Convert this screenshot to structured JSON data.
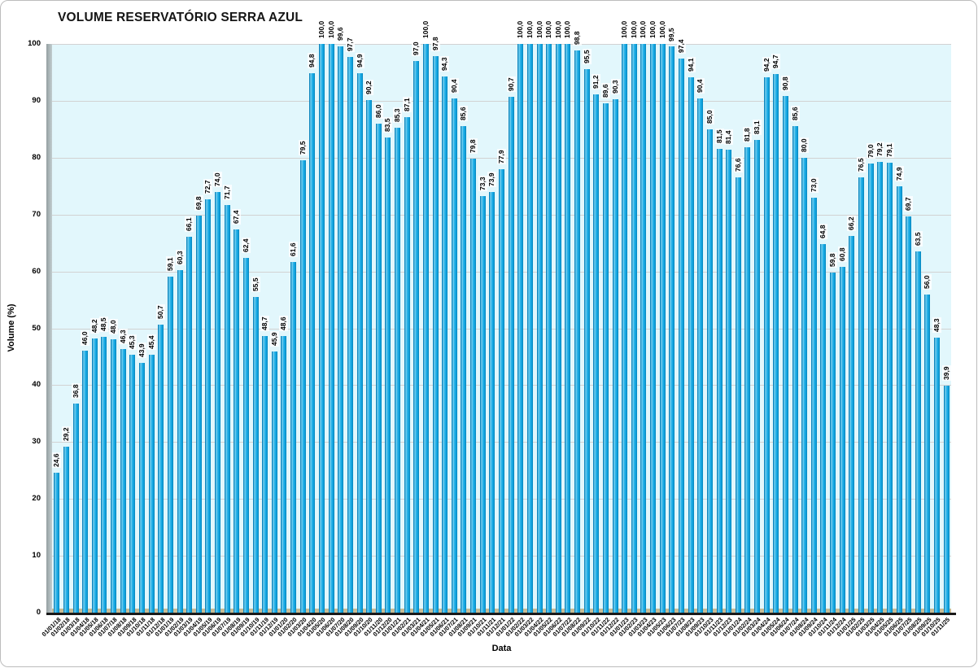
{
  "header": {
    "title": "VOLUME RESERVATÓRIO SERRA AZUL"
  },
  "chart_data": {
    "type": "bar",
    "title": "VOLUME RESERVATÓRIO SERRA AZUL",
    "xlabel": "Data",
    "ylabel": "Volume (%)",
    "ylim": [
      0,
      100
    ],
    "yticks": [
      0,
      10,
      20,
      30,
      40,
      50,
      60,
      70,
      80,
      90,
      100
    ],
    "grid": true,
    "legend": "none",
    "decimal_separator": ",",
    "colors": {
      "bar": "#0fa6e2",
      "bar_edge_dark": "#0a85bb",
      "bar_highlight": "#8adaf5",
      "plot_background": "#e2f7fc",
      "gridline": "#d2d2d2",
      "floor": "#c8bc96",
      "wall": "#aeb9bb",
      "baseline": "#191919",
      "text": "#000000"
    },
    "categories": [
      "01/01/18",
      "01/02/18",
      "01/03/18",
      "01/04/18",
      "01/05/18",
      "01/06/18",
      "01/07/18",
      "01/08/18",
      "01/09/18",
      "01/10/18",
      "01/11/18",
      "01/12/18",
      "01/01/19",
      "01/02/19",
      "01/03/19",
      "01/04/19",
      "01/05/19",
      "01/06/19",
      "01/07/19",
      "01/08/19",
      "01/09/19",
      "01/10/19",
      "01/11/19",
      "01/12/19",
      "01/01/20",
      "01/02/20",
      "01/03/20",
      "01/04/20",
      "01/05/20",
      "01/06/20",
      "01/07/20",
      "01/08/20",
      "01/09/20",
      "01/10/20",
      "01/11/20",
      "01/12/20",
      "01/01/21",
      "01/02/21",
      "01/03/21",
      "01/04/21",
      "01/05/21",
      "01/06/21",
      "01/07/21",
      "01/08/21",
      "01/09/21",
      "01/10/21",
      "01/11/21",
      "01/12/21",
      "01/01/22",
      "01/02/22",
      "01/03/22",
      "01/04/22",
      "01/05/22",
      "01/06/22",
      "01/07/22",
      "01/08/22",
      "01/09/22",
      "01/10/22",
      "01/11/22",
      "01/12/22",
      "01/01/23",
      "01/02/23",
      "01/03/23",
      "01/04/23",
      "01/05/23",
      "01/06/23",
      "01/07/23",
      "01/08/23",
      "01/09/23",
      "01/10/23",
      "01/11/23",
      "01/12/23",
      "01/01/24",
      "01/02/24",
      "01/03/24",
      "01/04/24",
      "01/05/24",
      "01/06/24",
      "01/07/24",
      "01/08/24",
      "01/09/24",
      "01/10/24",
      "01/11/24",
      "01/12/24",
      "01/01/25",
      "01/02/25",
      "01/03/25",
      "01/04/25",
      "01/05/25",
      "01/06/25",
      "01/07/25",
      "01/08/25",
      "01/09/25",
      "01/10/25",
      "01/11/25"
    ],
    "values": [
      24.6,
      29.2,
      36.8,
      46.0,
      48.2,
      48.5,
      48.0,
      46.3,
      45.3,
      43.9,
      45.4,
      50.7,
      59.1,
      60.3,
      66.1,
      69.8,
      72.7,
      74.0,
      71.7,
      67.4,
      62.4,
      55.5,
      48.7,
      45.9,
      48.6,
      61.6,
      79.5,
      94.8,
      100.0,
      100.0,
      99.6,
      97.7,
      94.9,
      90.2,
      86.0,
      83.5,
      85.3,
      87.1,
      97.0,
      100.0,
      97.8,
      94.3,
      90.4,
      85.6,
      79.8,
      73.3,
      73.9,
      77.9,
      90.7,
      100.0,
      100.0,
      100.0,
      100.0,
      100.0,
      100.0,
      98.8,
      95.5,
      91.2,
      89.6,
      90.3,
      100.0,
      100.0,
      100.0,
      100.0,
      100.0,
      99.5,
      97.4,
      94.1,
      90.4,
      85.0,
      81.5,
      81.4,
      76.6,
      81.8,
      83.1,
      94.2,
      94.7,
      90.8,
      85.6,
      80.0,
      73.0,
      64.8,
      59.8,
      60.8,
      66.2,
      76.5,
      79.0,
      79.2,
      79.1,
      74.9,
      69.7,
      63.5,
      56.0,
      48.3,
      39.9
    ]
  }
}
